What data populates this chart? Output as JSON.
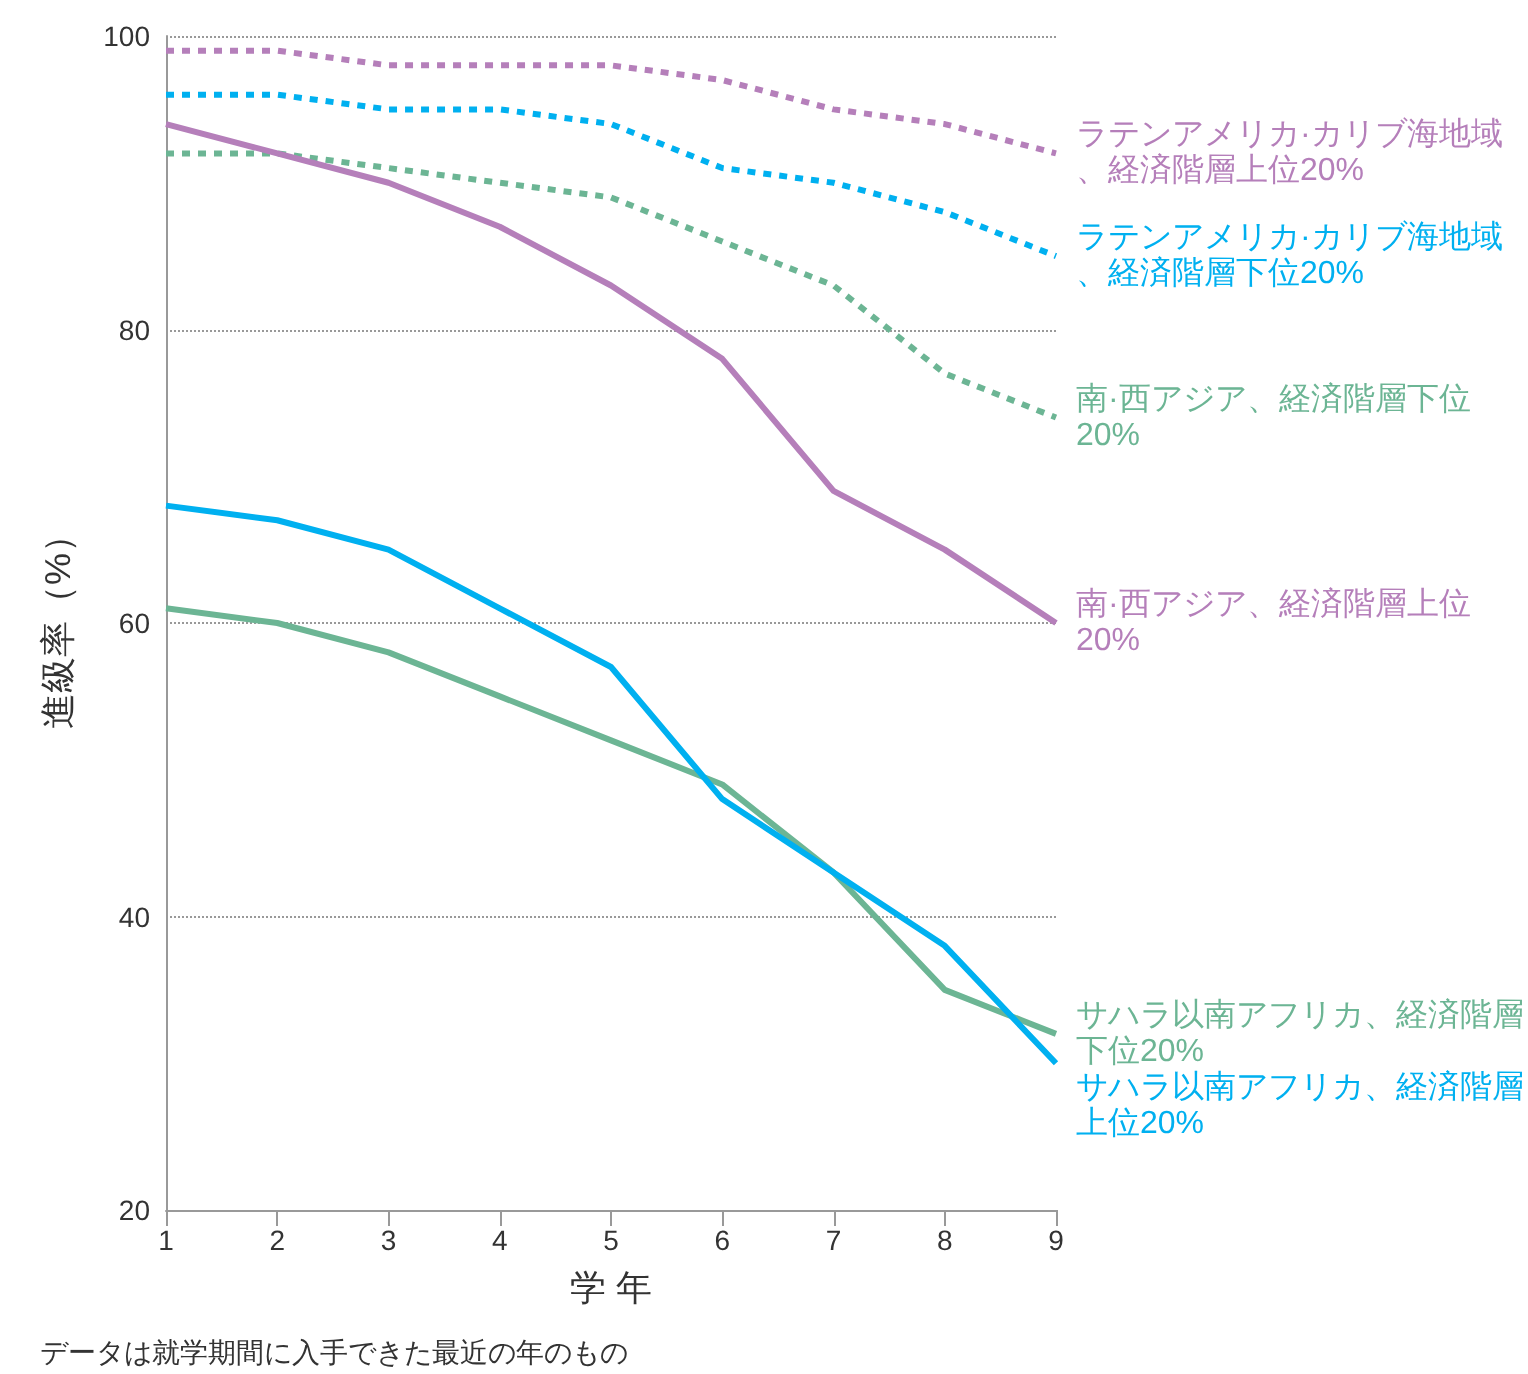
{
  "chart_data": {
    "type": "line",
    "xlabel": "学 年",
    "ylabel": "進級率（%）",
    "annotations": [
      "データは就学期間に入手できた最近の年のもの"
    ],
    "x": [
      1,
      2,
      3,
      4,
      5,
      6,
      7,
      8,
      9
    ],
    "xlim": [
      1,
      9
    ],
    "xticks": [
      1,
      2,
      3,
      4,
      5,
      6,
      7,
      8,
      9
    ],
    "ylim": [
      20,
      100
    ],
    "yticks": [
      20,
      40,
      60,
      80,
      100
    ],
    "grid": "y",
    "legend": false,
    "marker": "none",
    "series": [
      {
        "name": "ラテンアメリカ·カリブ海地域、経済階層上位20%",
        "color": "#b57fba",
        "line_style": "dotted",
        "values": [
          99,
          99,
          98,
          98,
          98,
          97,
          95,
          94,
          92
        ]
      },
      {
        "name": "ラテンアメリカ·カリブ海地域、経済階層下位20%",
        "color": "#00b0f0",
        "line_style": "dotted",
        "values": [
          96,
          96,
          95,
          95,
          94,
          91,
          90,
          88,
          85
        ]
      },
      {
        "name": "南·西アジア、経済階層下位20%",
        "color": "#6cb594",
        "line_style": "dotted",
        "values": [
          92,
          92,
          91,
          90,
          89,
          86,
          83,
          77,
          74
        ]
      },
      {
        "name": "南·西アジア、経済階層上位20%",
        "color": "#b57fba",
        "line_style": "solid",
        "values": [
          94,
          92,
          90,
          87,
          83,
          78,
          69,
          65,
          60
        ]
      },
      {
        "name": "サハラ以南アフリカ、経済階層下位20%",
        "color": "#6cb594",
        "line_style": "solid",
        "values": [
          61,
          60,
          58,
          55,
          52,
          49,
          43,
          35,
          32
        ]
      },
      {
        "name": "サハラ以南アフリカ、経済階層上位20%",
        "color": "#00b0f0",
        "line_style": "solid",
        "values": [
          68,
          67,
          65,
          61,
          57,
          48,
          43,
          38,
          30
        ]
      }
    ]
  }
}
